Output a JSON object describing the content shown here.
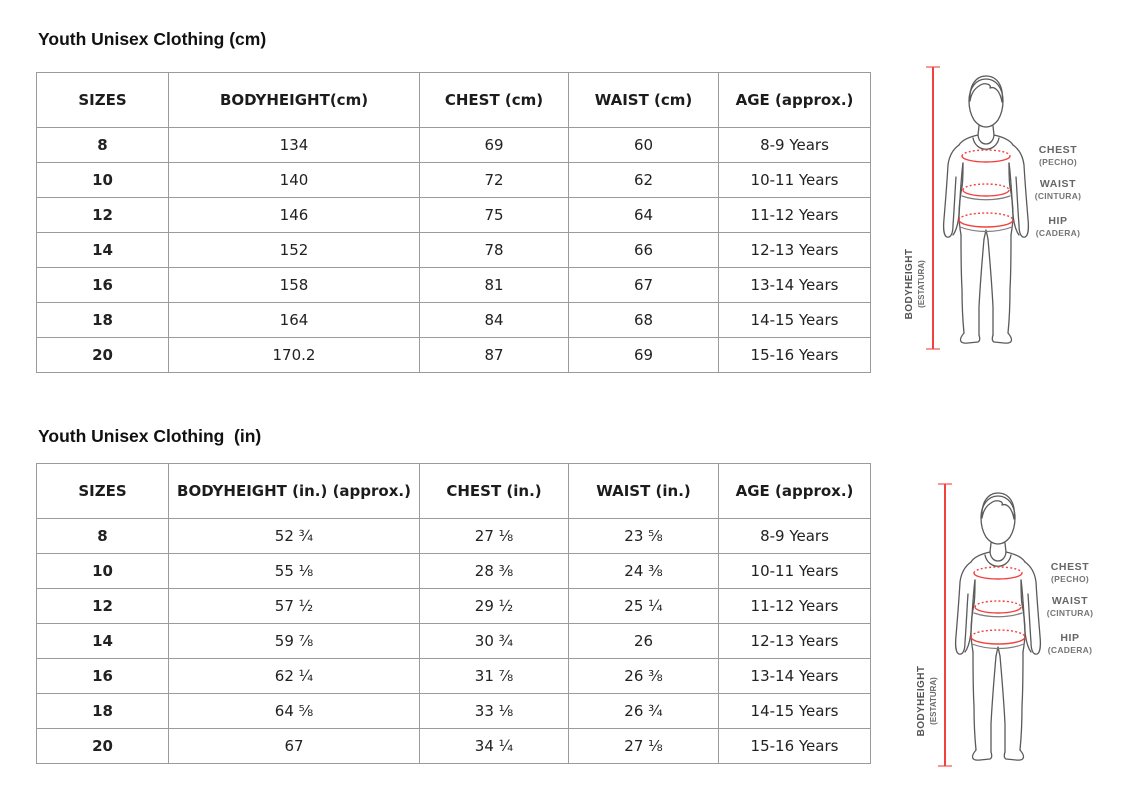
{
  "tables": [
    {
      "title": "Youth Unisex Clothing (cm)",
      "columns": [
        "SIZES",
        "BODYHEIGHT(cm)",
        "CHEST (cm)",
        "WAIST (cm)",
        "AGE (approx.)"
      ],
      "rows": [
        [
          "8",
          "134",
          "69",
          "60",
          "8-9 Years"
        ],
        [
          "10",
          "140",
          "72",
          "62",
          "10-11 Years"
        ],
        [
          "12",
          "146",
          "75",
          "64",
          "11-12 Years"
        ],
        [
          "14",
          "152",
          "78",
          "66",
          "12-13 Years"
        ],
        [
          "16",
          "158",
          "81",
          "67",
          "13-14 Years"
        ],
        [
          "18",
          "164",
          "84",
          "68",
          "14-15 Years"
        ],
        [
          "20",
          "170.2",
          "87",
          "69",
          "15-16 Years"
        ]
      ]
    },
    {
      "title": "Youth Unisex Clothing  (in)",
      "columns": [
        "SIZES",
        "BODYHEIGHT (in.) (approx.)",
        "CHEST (in.)",
        "WAIST (in.)",
        "AGE (approx.)"
      ],
      "rows": [
        [
          "8",
          "52 ¾",
          "27 ⅛",
          "23 ⅝",
          "8-9 Years"
        ],
        [
          "10",
          "55 ⅛",
          "28 ⅜",
          "24 ⅜",
          "10-11 Years"
        ],
        [
          "12",
          "57 ½",
          "29 ½",
          "25 ¼",
          "11-12 Years"
        ],
        [
          "14",
          "59 ⅞",
          "30 ¾",
          "26",
          "12-13 Years"
        ],
        [
          "16",
          "62 ¼",
          "31 ⅞",
          "26 ⅜",
          "13-14 Years"
        ],
        [
          "18",
          "64 ⅝",
          "33 ⅛",
          "26 ¾",
          "14-15 Years"
        ],
        [
          "20",
          "67",
          "34 ¼",
          "27 ⅛",
          "15-16 Years"
        ]
      ]
    }
  ],
  "figure": {
    "labels": {
      "chest": "CHEST",
      "chest_sub": "(PECHO)",
      "waist": "WAIST",
      "waist_sub": "(CINTURA)",
      "hip": "HIP",
      "hip_sub": "(CADERA)",
      "height": "BODYHEIGHT",
      "height_sub": "(ESTATURA)"
    },
    "colors": {
      "measure_red": "#f2423e",
      "label_gray": "#666666",
      "outline_gray": "#5a5a5a",
      "table_border": "#9b9b9b"
    }
  }
}
